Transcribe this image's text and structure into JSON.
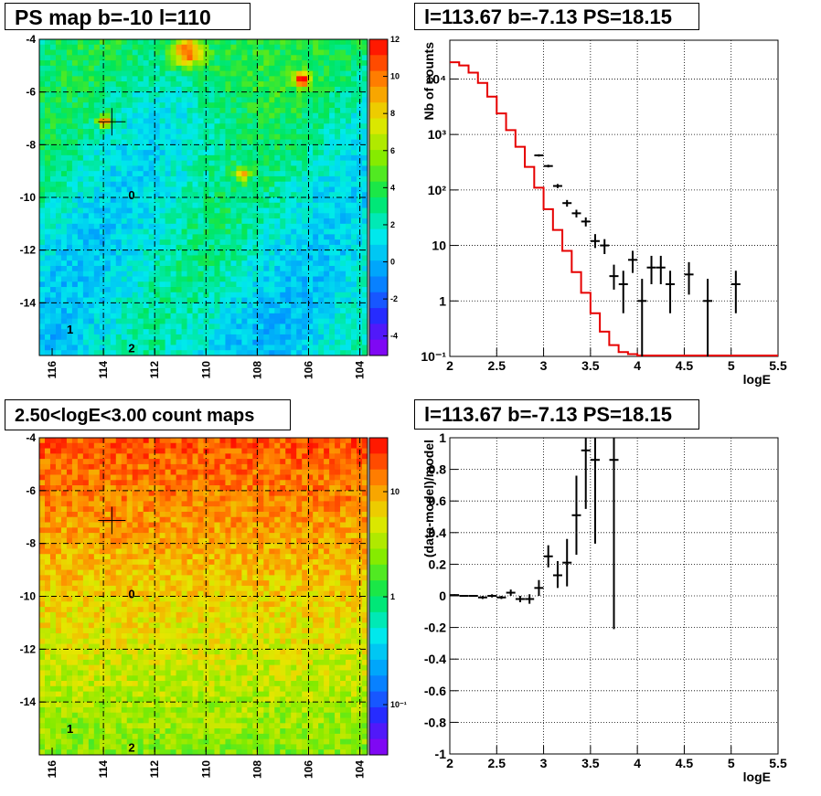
{
  "panels": {
    "map_top_title": "PS map b=-10 l=110",
    "spec_top_title": "l=113.67 b=-7.13 PS=18.15",
    "map_bottom_title": "2.50<logE<3.00 count maps",
    "spec_bottom_title": "l=113.67 b=-7.13 PS=18.15"
  },
  "maps": {
    "x_ticks": [
      "116",
      "114",
      "112",
      "110",
      "108",
      "106",
      "104"
    ],
    "y_ticks": [
      "-4",
      "-6",
      "-8",
      "-10",
      "-12",
      "-14"
    ],
    "source_labels": [
      "0",
      "1",
      "2"
    ],
    "top_colorbar_ticks": [
      "12",
      "10",
      "8",
      "6",
      "4",
      "2",
      "0",
      "-2",
      "-4"
    ],
    "bottom_colorbar_ticks": [
      "10",
      "1",
      "10⁻¹"
    ]
  },
  "chart_data": [
    {
      "type": "heatmap",
      "title": "PS map b=-10 l=110",
      "x_range": [
        116.5,
        103.7
      ],
      "y_range": [
        -16,
        -4
      ],
      "z_range": [
        -5,
        12
      ],
      "markers": [
        {
          "label": "0",
          "l": 112.9,
          "b": -9.9
        },
        {
          "label": "1",
          "l": 115.3,
          "b": -15.0
        },
        {
          "label": "2",
          "l": 112.9,
          "b": -15.7
        }
      ],
      "cross": {
        "l": 113.67,
        "b": -7.13
      }
    },
    {
      "type": "line",
      "title": "l=113.67 b=-7.13 PS=18.15",
      "xlabel": "logE",
      "ylabel": "Nb of counts",
      "xlim": [
        2,
        5.5
      ],
      "ylim": [
        0.1,
        50000
      ],
      "log_y": true,
      "grid": true,
      "y_tick_labels": [
        "10⁻¹",
        "1",
        "10",
        "10²",
        "10³",
        "10⁴"
      ],
      "x_tick_labels": [
        "2",
        "2.5",
        "3",
        "3.5",
        "4",
        "4.5",
        "5",
        "5.5"
      ],
      "model_edges": [
        2.0,
        2.1,
        2.2,
        2.3,
        2.4,
        2.5,
        2.6,
        2.7,
        2.8,
        2.9,
        3.0,
        3.1,
        3.2,
        3.3,
        3.4,
        3.5,
        3.6,
        3.7,
        3.8,
        3.9,
        4.0,
        4.1,
        4.2,
        4.3,
        5.5
      ],
      "model_values": [
        20000,
        17500,
        13000,
        8500,
        4800,
        2400,
        1200,
        600,
        260,
        110,
        45,
        19,
        8,
        3.3,
        1.4,
        0.6,
        0.28,
        0.16,
        0.12,
        0.11,
        0.1,
        0.1,
        0.1,
        0.1
      ],
      "data_points": [
        {
          "x": 2.95,
          "y": 420,
          "lo": 400,
          "hi": 440
        },
        {
          "x": 3.05,
          "y": 270,
          "lo": 255,
          "hi": 285
        },
        {
          "x": 3.15,
          "y": 118,
          "lo": 108,
          "hi": 128
        },
        {
          "x": 3.25,
          "y": 58,
          "lo": 50,
          "hi": 66
        },
        {
          "x": 3.35,
          "y": 38,
          "lo": 32,
          "hi": 44
        },
        {
          "x": 3.45,
          "y": 27,
          "lo": 22,
          "hi": 32
        },
        {
          "x": 3.55,
          "y": 12,
          "lo": 9,
          "hi": 16
        },
        {
          "x": 3.65,
          "y": 10,
          "lo": 7,
          "hi": 13
        },
        {
          "x": 3.75,
          "y": 2.8,
          "lo": 1.6,
          "hi": 4.5
        },
        {
          "x": 3.85,
          "y": 2,
          "lo": 0.6,
          "hi": 3.5
        },
        {
          "x": 3.95,
          "y": 5.5,
          "lo": 3.2,
          "hi": 8
        },
        {
          "x": 4.05,
          "y": 1,
          "lo": 0.1,
          "hi": 2.5
        },
        {
          "x": 4.15,
          "y": 4,
          "lo": 2,
          "hi": 6.5
        },
        {
          "x": 4.25,
          "y": 4,
          "lo": 2,
          "hi": 6.5
        },
        {
          "x": 4.35,
          "y": 2,
          "lo": 0.6,
          "hi": 3.5
        },
        {
          "x": 4.55,
          "y": 3,
          "lo": 1.3,
          "hi": 5
        },
        {
          "x": 4.75,
          "y": 1,
          "lo": 0.1,
          "hi": 2.5
        },
        {
          "x": 5.05,
          "y": 2,
          "lo": 0.6,
          "hi": 3.5
        }
      ]
    },
    {
      "type": "heatmap",
      "title": "2.50<logE<3.00 count maps",
      "x_range": [
        116.5,
        103.7
      ],
      "y_range": [
        -16,
        -4
      ],
      "log_z": true,
      "z_range": [
        0.05,
        30
      ],
      "markers": [
        {
          "label": "0",
          "l": 112.9,
          "b": -9.9
        },
        {
          "label": "1",
          "l": 115.3,
          "b": -15.0
        },
        {
          "label": "2",
          "l": 112.9,
          "b": -15.7
        }
      ],
      "cross": {
        "l": 113.67,
        "b": -7.13
      }
    },
    {
      "type": "scatter",
      "title": "l=113.67 b=-7.13 PS=18.15",
      "xlabel": "logE",
      "ylabel": "(data-model)/model",
      "xlim": [
        2,
        5.5
      ],
      "ylim": [
        -1,
        1
      ],
      "grid": true,
      "y_tick_labels": [
        "-1",
        "-0.8",
        "-0.6",
        "-0.4",
        "-0.2",
        "0",
        "0.2",
        "0.4",
        "0.6",
        "0.8",
        "1"
      ],
      "x_tick_labels": [
        "2",
        "2.5",
        "3",
        "3.5",
        "4",
        "4.5",
        "5",
        "5.5"
      ],
      "data_points": [
        {
          "x": 2.05,
          "y": 0.005,
          "lo": 0.0,
          "hi": 0.01
        },
        {
          "x": 2.15,
          "y": 0.0,
          "lo": -0.005,
          "hi": 0.005
        },
        {
          "x": 2.25,
          "y": 0.0,
          "lo": -0.005,
          "hi": 0.005
        },
        {
          "x": 2.35,
          "y": -0.01,
          "lo": -0.02,
          "hi": 0.0
        },
        {
          "x": 2.45,
          "y": 0.0,
          "lo": -0.01,
          "hi": 0.01
        },
        {
          "x": 2.55,
          "y": -0.01,
          "lo": -0.02,
          "hi": 0.0
        },
        {
          "x": 2.65,
          "y": 0.02,
          "lo": 0.0,
          "hi": 0.04
        },
        {
          "x": 2.75,
          "y": -0.02,
          "lo": -0.04,
          "hi": 0.0
        },
        {
          "x": 2.85,
          "y": -0.02,
          "lo": -0.05,
          "hi": 0.01
        },
        {
          "x": 2.95,
          "y": 0.05,
          "lo": 0.0,
          "hi": 0.1
        },
        {
          "x": 3.05,
          "y": 0.25,
          "lo": 0.18,
          "hi": 0.32
        },
        {
          "x": 3.15,
          "y": 0.13,
          "lo": 0.05,
          "hi": 0.22
        },
        {
          "x": 3.25,
          "y": 0.21,
          "lo": 0.06,
          "hi": 0.36
        },
        {
          "x": 3.35,
          "y": 0.51,
          "lo": 0.26,
          "hi": 0.76
        },
        {
          "x": 3.45,
          "y": 0.92,
          "lo": 0.55,
          "hi": 1.0
        },
        {
          "x": 3.55,
          "y": 0.86,
          "lo": 0.33,
          "hi": 1.0
        },
        {
          "x": 3.75,
          "y": 0.86,
          "lo": -0.21,
          "hi": 1.0
        }
      ]
    }
  ]
}
